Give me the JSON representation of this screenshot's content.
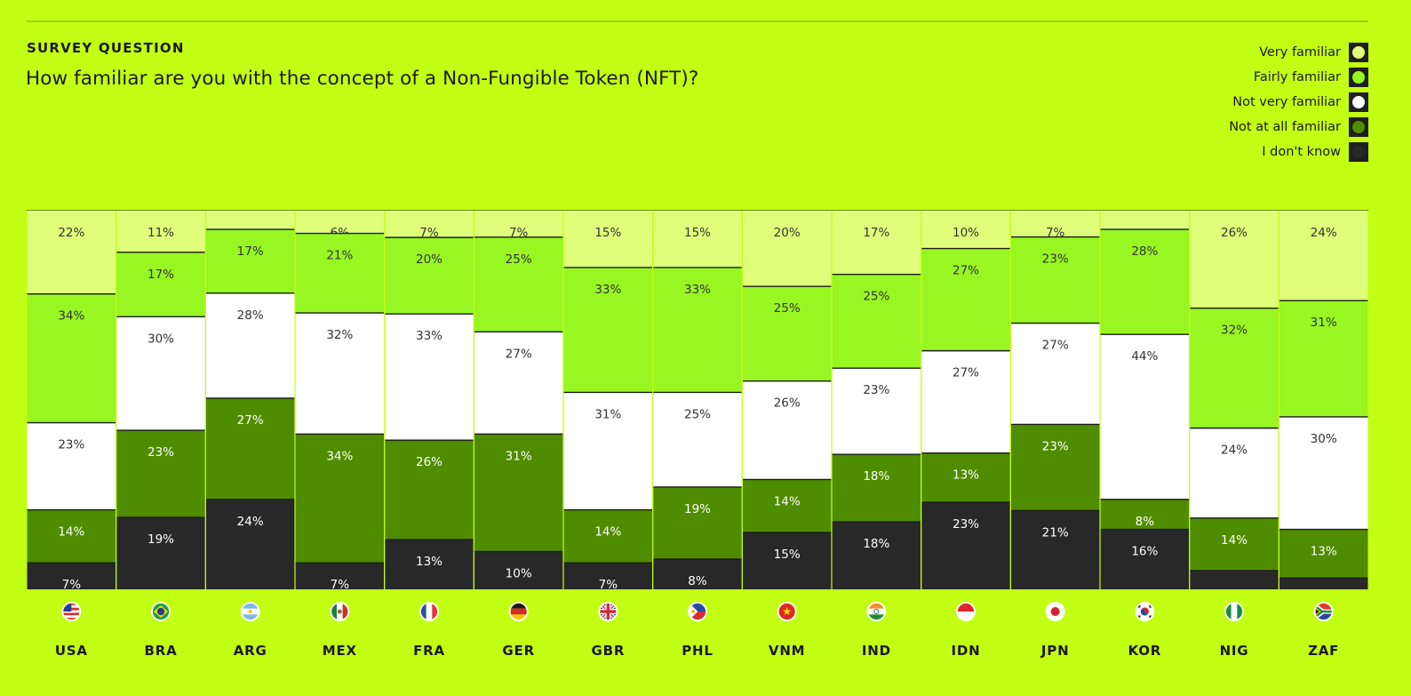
{
  "header": {
    "kicker": "SURVEY QUESTION",
    "question": "How familiar are you with the concept of a Non-Fungible Token (NFT)?"
  },
  "legend": [
    {
      "label": "Very familiar",
      "color": "#dfff7a"
    },
    {
      "label": "Fairly familiar",
      "color": "#98f622"
    },
    {
      "label": "Not very familiar",
      "color": "#ffffff"
    },
    {
      "label": "Not at all familiar",
      "color": "#4f8c00"
    },
    {
      "label": "I don't know",
      "color": "#282828"
    }
  ],
  "chart_data": {
    "type": "bar",
    "stacked": true,
    "normalized": true,
    "title": "How familiar are you with the concept of a Non-Fungible Token (NFT)?",
    "categories": [
      "USA",
      "BRA",
      "ARG",
      "MEX",
      "FRA",
      "GER",
      "GBR",
      "PHL",
      "VNM",
      "IND",
      "IDN",
      "JPN",
      "KOR",
      "NIG",
      "ZAF"
    ],
    "flags": [
      "us-flag-icon",
      "br-flag-icon",
      "ar-flag-icon",
      "mx-flag-icon",
      "fr-flag-icon",
      "de-flag-icon",
      "gb-flag-icon",
      "ph-flag-icon",
      "vn-flag-icon",
      "in-flag-icon",
      "id-flag-icon",
      "jp-flag-icon",
      "kr-flag-icon",
      "ng-flag-icon",
      "za-flag-icon"
    ],
    "series": [
      {
        "name": "Very familiar",
        "color": "#dfff7a",
        "text_color": "#333333",
        "values": [
          22,
          11,
          5,
          6,
          7,
          7,
          15,
          15,
          20,
          17,
          10,
          7,
          5,
          26,
          24
        ],
        "labels": [
          "22%",
          "11%",
          "",
          "6%",
          "7%",
          "7%",
          "15%",
          "15%",
          "20%",
          "17%",
          "10%",
          "7%",
          "",
          "26%",
          "24%"
        ]
      },
      {
        "name": "Fairly familiar",
        "color": "#98f622",
        "text_color": "#333333",
        "values": [
          34,
          17,
          17,
          21,
          20,
          25,
          33,
          33,
          25,
          25,
          27,
          23,
          28,
          32,
          31
        ],
        "labels": [
          "34%",
          "17%",
          "17%",
          "21%",
          "20%",
          "25%",
          "33%",
          "33%",
          "25%",
          "25%",
          "27%",
          "23%",
          "28%",
          "32%",
          "31%"
        ]
      },
      {
        "name": "Not very familiar",
        "color": "#ffffff",
        "text_color": "#333333",
        "values": [
          23,
          30,
          28,
          32,
          33,
          27,
          31,
          25,
          26,
          23,
          27,
          27,
          44,
          24,
          30
        ],
        "labels": [
          "23%",
          "30%",
          "28%",
          "32%",
          "33%",
          "27%",
          "31%",
          "25%",
          "26%",
          "23%",
          "27%",
          "27%",
          "44%",
          "24%",
          "30%"
        ]
      },
      {
        "name": "Not at all familiar",
        "color": "#4f8c00",
        "text_color": "#ffffff",
        "values": [
          14,
          23,
          27,
          34,
          26,
          31,
          14,
          19,
          14,
          18,
          13,
          23,
          8,
          14,
          13
        ],
        "labels": [
          "14%",
          "23%",
          "27%",
          "34%",
          "26%",
          "31%",
          "14%",
          "19%",
          "14%",
          "18%",
          "13%",
          "23%",
          "8%",
          "14%",
          "13%"
        ]
      },
      {
        "name": "I don't know",
        "color": "#282828",
        "text_color": "#ffffff",
        "values": [
          7,
          19,
          24,
          7,
          13,
          10,
          7,
          8,
          15,
          18,
          23,
          21,
          16,
          5,
          3
        ],
        "labels": [
          "7%",
          "19%",
          "24%",
          "7%",
          "13%",
          "10%",
          "7%",
          "8%",
          "15%",
          "18%",
          "23%",
          "21%",
          "16%",
          "",
          ""
        ]
      }
    ],
    "ylim": [
      0,
      100
    ],
    "xlabel": "",
    "ylabel": "",
    "legend_position": "top-right",
    "grid": false
  }
}
